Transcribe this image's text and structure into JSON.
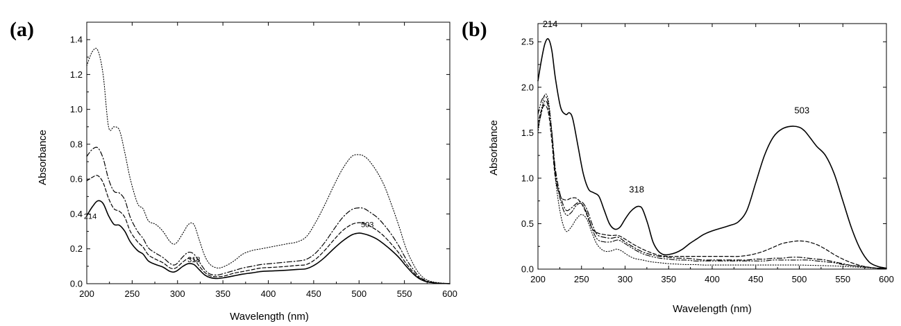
{
  "chart_data": [
    {
      "panel_label": "(a)",
      "type": "line",
      "xlabel": "Wavelength (nm)",
      "ylabel": "Absorbance",
      "xlim": [
        200,
        600
      ],
      "ylim": [
        0,
        1.5
      ],
      "xticks": [
        200,
        250,
        300,
        350,
        400,
        450,
        500,
        550,
        600
      ],
      "xtick_labels": [
        "200",
        "250",
        "300",
        "350",
        "400",
        "450",
        "500",
        "550",
        "600"
      ],
      "yticks": [
        0,
        0.2,
        0.4,
        0.6,
        0.8,
        1.0,
        1.2,
        1.4
      ],
      "ytick_labels": [
        "0.0",
        "0.2",
        "0.4",
        "0.6",
        "0.8",
        "1.0",
        "1.2",
        "1.4"
      ],
      "annotations": [
        {
          "text": "214",
          "x": 210,
          "y": 0.38
        },
        {
          "text": "318",
          "x": 318,
          "y": 0.1
        },
        {
          "text": "503",
          "x": 503,
          "y": 0.3
        }
      ],
      "series": [
        {
          "name": "solid",
          "style": "solid",
          "width": 1.6,
          "x": [
            200,
            206,
            212,
            218,
            224,
            230,
            236,
            242,
            248,
            256,
            262,
            268,
            276,
            284,
            292,
            298,
            306,
            312,
            318,
            324,
            330,
            336,
            344,
            352,
            362,
            372,
            382,
            392,
            402,
            412,
            422,
            432,
            442,
            452,
            462,
            472,
            482,
            492,
            500,
            506,
            512,
            520,
            528,
            536,
            544,
            552,
            560,
            566,
            572,
            578,
            584,
            590,
            596,
            600
          ],
          "y": [
            0.39,
            0.44,
            0.475,
            0.46,
            0.39,
            0.34,
            0.335,
            0.3,
            0.24,
            0.19,
            0.17,
            0.13,
            0.11,
            0.095,
            0.07,
            0.07,
            0.1,
            0.115,
            0.11,
            0.08,
            0.05,
            0.035,
            0.03,
            0.035,
            0.045,
            0.055,
            0.062,
            0.07,
            0.073,
            0.075,
            0.078,
            0.082,
            0.086,
            0.11,
            0.15,
            0.2,
            0.245,
            0.28,
            0.29,
            0.285,
            0.275,
            0.255,
            0.225,
            0.19,
            0.15,
            0.1,
            0.055,
            0.03,
            0.015,
            0.008,
            0.004,
            0.002,
            0.001,
            0.0
          ]
        },
        {
          "name": "dashed",
          "style": "dashed",
          "width": 1.2,
          "x": [
            200,
            206,
            212,
            218,
            224,
            230,
            236,
            242,
            248,
            256,
            262,
            268,
            276,
            284,
            292,
            298,
            306,
            312,
            318,
            324,
            330,
            336,
            344,
            352,
            362,
            372,
            382,
            392,
            402,
            412,
            422,
            432,
            442,
            452,
            462,
            472,
            482,
            492,
            500,
            506,
            512,
            520,
            528,
            536,
            544,
            552,
            560,
            566,
            572,
            578,
            584,
            590,
            596,
            600
          ],
          "y": [
            0.59,
            0.61,
            0.62,
            0.58,
            0.49,
            0.43,
            0.415,
            0.38,
            0.3,
            0.24,
            0.21,
            0.165,
            0.14,
            0.12,
            0.09,
            0.09,
            0.125,
            0.145,
            0.14,
            0.1,
            0.065,
            0.045,
            0.04,
            0.045,
            0.06,
            0.07,
            0.08,
            0.09,
            0.093,
            0.096,
            0.1,
            0.105,
            0.11,
            0.14,
            0.19,
            0.25,
            0.305,
            0.34,
            0.35,
            0.345,
            0.33,
            0.305,
            0.27,
            0.225,
            0.175,
            0.115,
            0.065,
            0.035,
            0.018,
            0.009,
            0.004,
            0.002,
            0.001,
            0.0
          ]
        },
        {
          "name": "dash-dot",
          "style": "dashdot",
          "width": 1.2,
          "x": [
            200,
            206,
            212,
            218,
            224,
            230,
            236,
            242,
            248,
            256,
            262,
            268,
            276,
            284,
            292,
            298,
            306,
            312,
            318,
            324,
            330,
            336,
            344,
            352,
            362,
            372,
            382,
            392,
            402,
            412,
            422,
            432,
            442,
            452,
            462,
            472,
            482,
            492,
            500,
            506,
            512,
            520,
            528,
            536,
            544,
            552,
            560,
            566,
            572,
            578,
            584,
            590,
            596,
            600
          ],
          "y": [
            0.73,
            0.77,
            0.78,
            0.72,
            0.6,
            0.53,
            0.52,
            0.48,
            0.38,
            0.3,
            0.26,
            0.205,
            0.175,
            0.15,
            0.115,
            0.11,
            0.155,
            0.18,
            0.17,
            0.125,
            0.08,
            0.055,
            0.05,
            0.06,
            0.075,
            0.09,
            0.1,
            0.11,
            0.115,
            0.12,
            0.125,
            0.13,
            0.14,
            0.175,
            0.235,
            0.31,
            0.38,
            0.425,
            0.435,
            0.43,
            0.41,
            0.38,
            0.335,
            0.28,
            0.215,
            0.14,
            0.08,
            0.042,
            0.022,
            0.011,
            0.005,
            0.002,
            0.001,
            0.0
          ]
        },
        {
          "name": "dotted",
          "style": "dotted",
          "width": 1.1,
          "x": [
            200,
            206,
            212,
            218,
            224,
            230,
            236,
            242,
            248,
            256,
            262,
            268,
            276,
            284,
            292,
            298,
            306,
            312,
            318,
            324,
            330,
            336,
            344,
            352,
            362,
            372,
            382,
            392,
            402,
            412,
            422,
            432,
            442,
            452,
            462,
            472,
            482,
            492,
            500,
            506,
            512,
            520,
            528,
            536,
            544,
            552,
            560,
            566,
            572,
            578,
            584,
            590,
            596,
            600
          ],
          "y": [
            1.25,
            1.33,
            1.34,
            1.2,
            0.9,
            0.9,
            0.88,
            0.75,
            0.6,
            0.46,
            0.43,
            0.36,
            0.34,
            0.3,
            0.24,
            0.23,
            0.29,
            0.34,
            0.34,
            0.25,
            0.16,
            0.11,
            0.09,
            0.1,
            0.13,
            0.17,
            0.19,
            0.2,
            0.21,
            0.22,
            0.23,
            0.24,
            0.27,
            0.35,
            0.45,
            0.56,
            0.66,
            0.73,
            0.74,
            0.73,
            0.7,
            0.64,
            0.56,
            0.45,
            0.33,
            0.2,
            0.11,
            0.06,
            0.03,
            0.015,
            0.008,
            0.004,
            0.002,
            0.0
          ]
        }
      ]
    },
    {
      "panel_label": "(b)",
      "type": "line",
      "xlabel": "Wavelength (nm)",
      "ylabel": "Absorbance",
      "xlim": [
        200,
        600
      ],
      "ylim": [
        0,
        2.7
      ],
      "xticks": [
        200,
        250,
        300,
        350,
        400,
        450,
        500,
        550,
        600
      ],
      "xtick_labels": [
        "200",
        "250",
        "300",
        "350",
        "400",
        "450",
        "500",
        "550",
        "600"
      ],
      "yticks": [
        0,
        0.5,
        1.0,
        1.5,
        2.0,
        2.5
      ],
      "ytick_labels": [
        "0.0",
        "0.5",
        "1.0",
        "1.5",
        "2.0",
        "2.5"
      ],
      "annotations": [
        {
          "text": "214",
          "x": 214,
          "y": 2.6
        },
        {
          "text": "318",
          "x": 318,
          "y": 0.78
        },
        {
          "text": "503",
          "x": 503,
          "y": 1.65
        }
      ],
      "series": [
        {
          "name": "solid",
          "style": "solid",
          "width": 1.6,
          "x": [
            200,
            204,
            208,
            212,
            216,
            220,
            226,
            232,
            236,
            240,
            246,
            252,
            258,
            264,
            270,
            276,
            282,
            288,
            294,
            300,
            306,
            312,
            316,
            320,
            326,
            332,
            338,
            344,
            350,
            358,
            366,
            374,
            382,
            390,
            400,
            410,
            420,
            430,
            440,
            450,
            460,
            470,
            480,
            490,
            500,
            506,
            512,
            520,
            530,
            540,
            550,
            560,
            570,
            580,
            590,
            600
          ],
          "y": [
            2.07,
            2.3,
            2.48,
            2.53,
            2.4,
            2.1,
            1.78,
            1.7,
            1.72,
            1.65,
            1.35,
            1.05,
            0.88,
            0.84,
            0.8,
            0.65,
            0.5,
            0.44,
            0.46,
            0.55,
            0.63,
            0.68,
            0.69,
            0.66,
            0.5,
            0.3,
            0.2,
            0.16,
            0.16,
            0.18,
            0.22,
            0.28,
            0.33,
            0.38,
            0.42,
            0.45,
            0.48,
            0.52,
            0.65,
            0.95,
            1.25,
            1.45,
            1.54,
            1.57,
            1.56,
            1.52,
            1.45,
            1.35,
            1.25,
            1.05,
            0.75,
            0.45,
            0.22,
            0.08,
            0.03,
            0.01
          ]
        },
        {
          "name": "dashed",
          "style": "dashed",
          "width": 1.2,
          "x": [
            200,
            204,
            208,
            212,
            216,
            220,
            226,
            232,
            238,
            244,
            250,
            256,
            262,
            268,
            276,
            284,
            292,
            300,
            310,
            320,
            330,
            340,
            350,
            360,
            370,
            380,
            390,
            400,
            410,
            420,
            430,
            440,
            450,
            460,
            470,
            480,
            490,
            500,
            510,
            520,
            530,
            540,
            550,
            560,
            570,
            580,
            590,
            600
          ],
          "y": [
            1.6,
            1.75,
            1.8,
            1.72,
            1.4,
            1.0,
            0.8,
            0.76,
            0.78,
            0.78,
            0.72,
            0.6,
            0.45,
            0.4,
            0.38,
            0.37,
            0.37,
            0.33,
            0.27,
            0.22,
            0.18,
            0.15,
            0.14,
            0.14,
            0.14,
            0.14,
            0.14,
            0.14,
            0.14,
            0.14,
            0.14,
            0.15,
            0.17,
            0.2,
            0.24,
            0.28,
            0.3,
            0.31,
            0.3,
            0.27,
            0.22,
            0.16,
            0.11,
            0.07,
            0.04,
            0.02,
            0.01,
            0.005
          ]
        },
        {
          "name": "dash-dot",
          "style": "dashdot",
          "width": 1.2,
          "x": [
            200,
            204,
            208,
            212,
            216,
            220,
            226,
            232,
            238,
            244,
            250,
            256,
            262,
            268,
            276,
            284,
            292,
            300,
            310,
            320,
            330,
            340,
            350,
            360,
            370,
            380,
            390,
            400,
            410,
            420,
            430,
            440,
            450,
            460,
            470,
            480,
            490,
            500,
            510,
            520,
            530,
            540,
            550,
            560,
            570,
            580,
            590,
            600
          ],
          "y": [
            1.55,
            1.72,
            1.85,
            1.78,
            1.5,
            1.1,
            0.8,
            0.65,
            0.67,
            0.72,
            0.74,
            0.66,
            0.5,
            0.38,
            0.35,
            0.34,
            0.35,
            0.3,
            0.24,
            0.19,
            0.16,
            0.14,
            0.13,
            0.12,
            0.12,
            0.11,
            0.1,
            0.1,
            0.1,
            0.1,
            0.1,
            0.1,
            0.11,
            0.11,
            0.12,
            0.12,
            0.13,
            0.13,
            0.12,
            0.11,
            0.1,
            0.08,
            0.06,
            0.04,
            0.03,
            0.02,
            0.01,
            0.005
          ]
        },
        {
          "name": "dash-dot-dot",
          "style": "dashdotdot",
          "width": 1.1,
          "x": [
            200,
            204,
            208,
            212,
            216,
            220,
            226,
            232,
            238,
            244,
            250,
            256,
            262,
            268,
            276,
            284,
            292,
            300,
            310,
            320,
            330,
            340,
            350,
            360,
            370,
            380,
            390,
            400,
            410,
            420,
            430,
            440,
            450,
            460,
            470,
            480,
            490,
            500,
            510,
            520,
            530,
            540,
            550,
            560,
            570,
            580,
            590,
            600
          ],
          "y": [
            1.7,
            1.85,
            1.9,
            1.82,
            1.5,
            1.05,
            0.75,
            0.6,
            0.62,
            0.7,
            0.72,
            0.62,
            0.45,
            0.33,
            0.3,
            0.3,
            0.32,
            0.28,
            0.22,
            0.17,
            0.14,
            0.12,
            0.11,
            0.1,
            0.1,
            0.09,
            0.09,
            0.09,
            0.09,
            0.09,
            0.09,
            0.09,
            0.09,
            0.09,
            0.1,
            0.1,
            0.1,
            0.1,
            0.1,
            0.09,
            0.08,
            0.07,
            0.05,
            0.04,
            0.03,
            0.02,
            0.01,
            0.005
          ]
        },
        {
          "name": "dotted",
          "style": "dotted",
          "width": 1.1,
          "x": [
            200,
            204,
            208,
            212,
            216,
            220,
            226,
            232,
            238,
            244,
            250,
            256,
            262,
            268,
            276,
            284,
            290,
            296,
            302,
            310,
            320,
            330,
            340,
            350,
            360,
            370,
            380,
            390,
            400,
            420,
            440,
            460,
            480,
            500,
            520,
            540,
            560,
            580,
            600
          ],
          "y": [
            1.5,
            1.75,
            1.92,
            1.85,
            1.5,
            1.0,
            0.6,
            0.42,
            0.46,
            0.55,
            0.6,
            0.55,
            0.4,
            0.27,
            0.2,
            0.2,
            0.22,
            0.2,
            0.16,
            0.12,
            0.1,
            0.08,
            0.07,
            0.06,
            0.055,
            0.05,
            0.05,
            0.045,
            0.045,
            0.045,
            0.045,
            0.045,
            0.045,
            0.045,
            0.04,
            0.035,
            0.025,
            0.015,
            0.005
          ]
        }
      ]
    }
  ]
}
